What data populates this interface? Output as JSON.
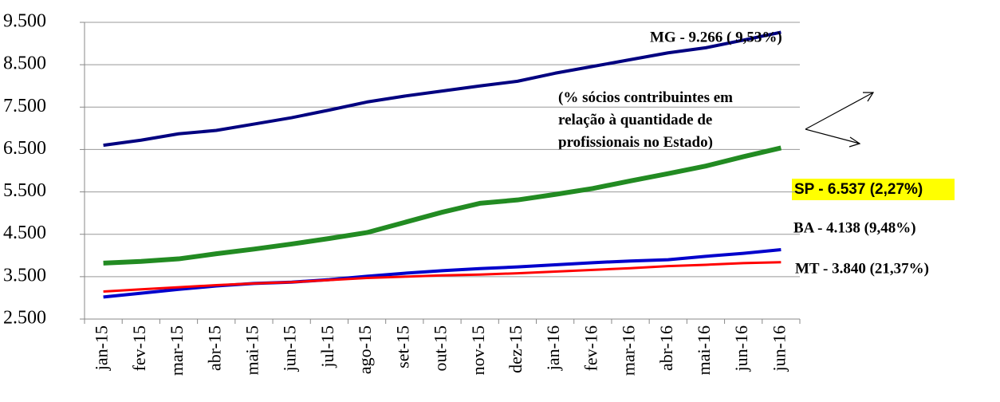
{
  "chart_data": {
    "type": "line",
    "categories": [
      "jan-15",
      "fev-15",
      "mar-15",
      "abr-15",
      "mai-15",
      "jun-15",
      "jul-15",
      "ago-15",
      "set-15",
      "out-15",
      "nov-15",
      "dez-15",
      "jan-16",
      "fev-16",
      "mar-16",
      "abr-16",
      "mai-16",
      "jun-16",
      "jun-16"
    ],
    "series": [
      {
        "name": "MG - 9.266 ( 9,53%)",
        "color": "#000080",
        "values": [
          6600,
          6720,
          6870,
          6950,
          7100,
          7250,
          7430,
          7620,
          7760,
          7880,
          8000,
          8110,
          8300,
          8460,
          8620,
          8780,
          8900,
          9080,
          9266
        ]
      },
      {
        "name": "SP - 6.537 (2,27%)",
        "color": "#228b22",
        "values": [
          3820,
          3860,
          3920,
          4040,
          4150,
          4270,
          4400,
          4540,
          4780,
          5020,
          5230,
          5310,
          5440,
          5580,
          5760,
          5930,
          6110,
          6330,
          6537
        ]
      },
      {
        "name": "BA - 4.138 (9,48%)",
        "color": "#0000cc",
        "values": [
          3020,
          3110,
          3200,
          3280,
          3340,
          3370,
          3430,
          3510,
          3580,
          3640,
          3690,
          3730,
          3780,
          3830,
          3870,
          3900,
          3980,
          4050,
          4138
        ]
      },
      {
        "name": "MT - 3.840 (21,37%)",
        "color": "#ff0000",
        "values": [
          3150,
          3200,
          3250,
          3300,
          3340,
          3370,
          3420,
          3470,
          3500,
          3530,
          3550,
          3580,
          3620,
          3660,
          3700,
          3750,
          3780,
          3820,
          3840
        ]
      }
    ],
    "annotation": [
      "(% sócios contribuintes em",
      "relação à quantidade de",
      "profissionais no Estado)"
    ],
    "ylim": [
      2500,
      9500
    ],
    "yticks": [
      {
        "value": 2500,
        "label": "2.500"
      },
      {
        "value": 3500,
        "label": "3.500"
      },
      {
        "value": 4500,
        "label": "4.500"
      },
      {
        "value": 5500,
        "label": "5.500"
      },
      {
        "value": 6500,
        "label": "6.500"
      },
      {
        "value": 7500,
        "label": "7.500"
      },
      {
        "value": 8500,
        "label": "8.500"
      },
      {
        "value": 9500,
        "label": "9.500"
      }
    ],
    "grid": true
  }
}
